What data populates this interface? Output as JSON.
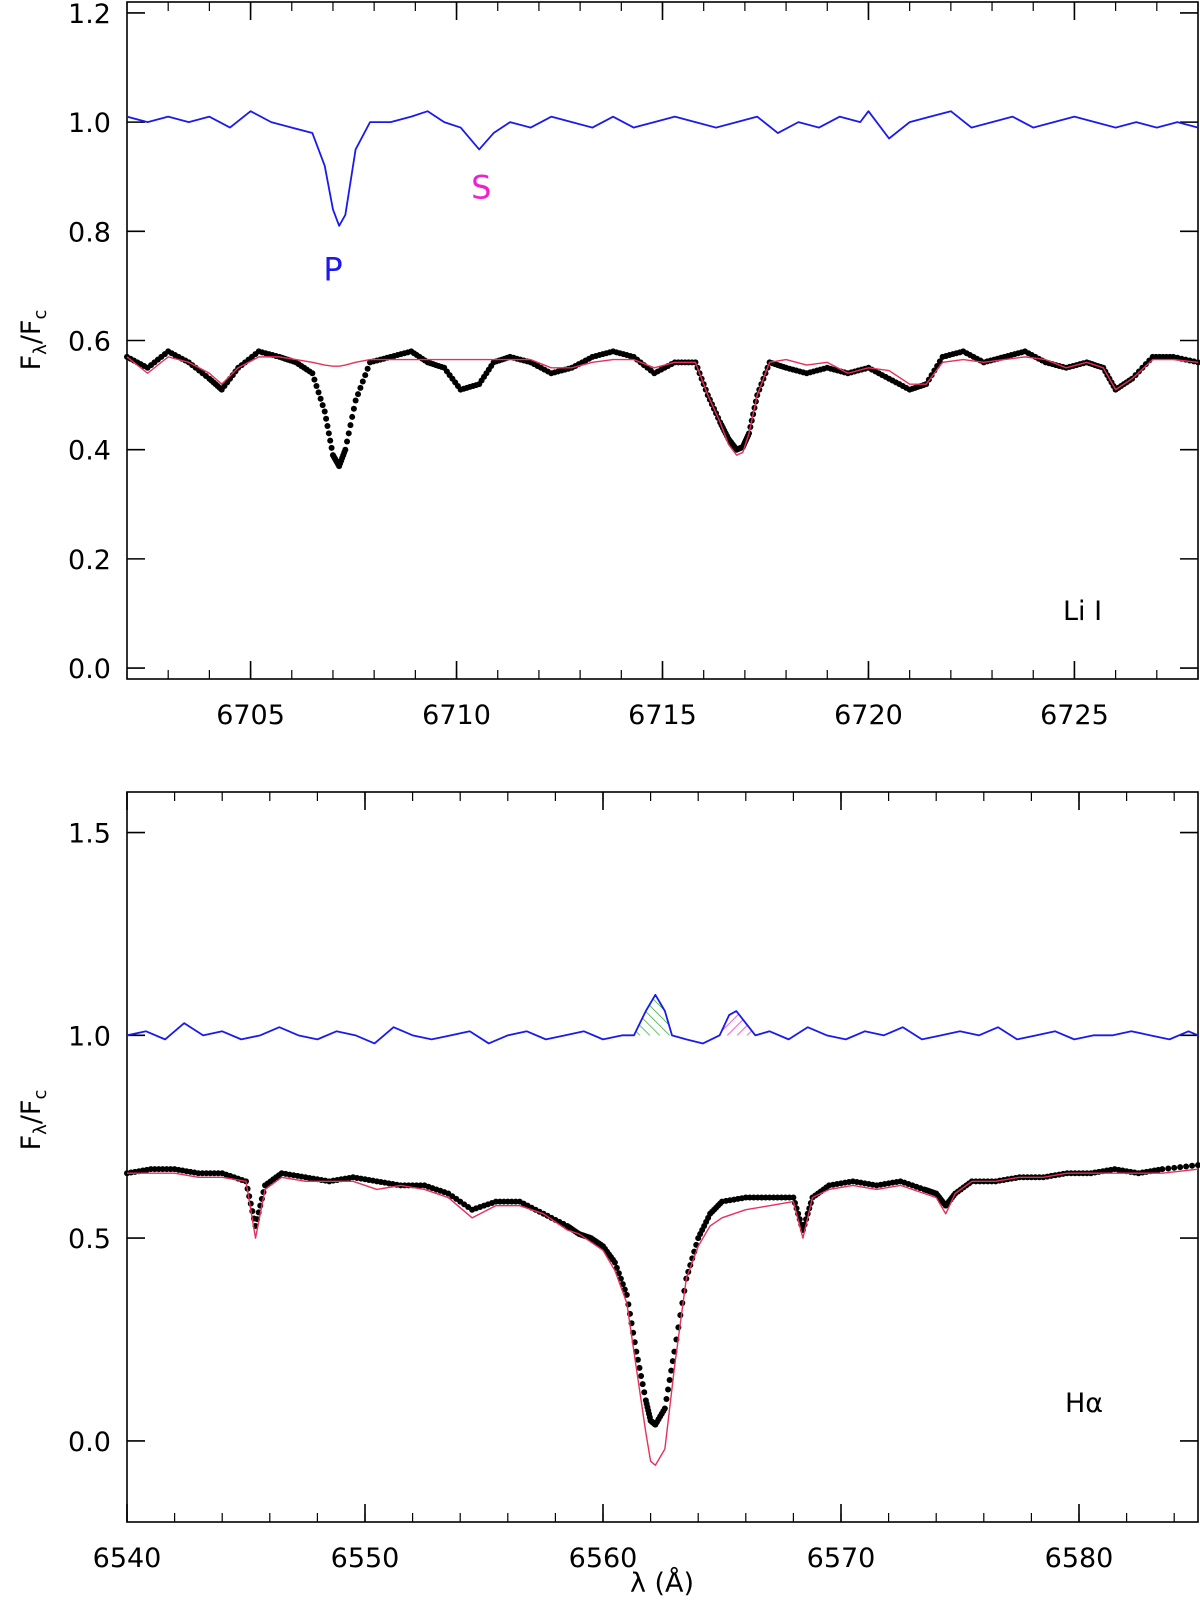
{
  "colors": {
    "observed": "#000000",
    "synthetic": "#e8305a",
    "residual": "#1a1aee",
    "secondary_label": "#ee22cc",
    "hatch_green": "#22aa22",
    "hatch_magenta": "#ee22cc"
  },
  "chart_data": [
    {
      "type": "line",
      "panel": "Li I",
      "annotation": "Li I",
      "xlabel": "",
      "ylabel_main": "F",
      "ylabel_sub1": "λ",
      "ylabel_sep": "/F",
      "ylabel_sub2": "c",
      "xlim": [
        6702,
        6728
      ],
      "ylim": [
        -0.02,
        1.22
      ],
      "xticks": [
        6705,
        6710,
        6715,
        6720,
        6725
      ],
      "yticks": [
        0.0,
        0.2,
        0.4,
        0.6,
        0.8,
        1.0,
        1.2
      ],
      "ytick_labels": [
        "0.0",
        "0.2",
        "0.4",
        "0.6",
        "0.8",
        "1.0",
        "1.2"
      ],
      "labels": [
        {
          "text": "P",
          "x": 6707.0,
          "y": 0.71,
          "color": "residual"
        },
        {
          "text": "S",
          "x": 6710.6,
          "y": 0.86,
          "color": "secondary_label"
        }
      ],
      "series": [
        {
          "style": "dots",
          "x": [
            6702.0,
            6702.5,
            6703.0,
            6703.5,
            6704.0,
            6704.3,
            6704.7,
            6705.2,
            6705.7,
            6706.1,
            6706.5,
            6706.8,
            6707.0,
            6707.15,
            6707.3,
            6707.55,
            6707.9,
            6708.4,
            6708.9,
            6709.3,
            6709.7,
            6710.1,
            6710.55,
            6710.9,
            6711.3,
            6711.8,
            6712.3,
            6712.8,
            6713.3,
            6713.8,
            6714.3,
            6714.8,
            6715.3,
            6715.8,
            6716.1,
            6716.4,
            6716.6,
            6716.8,
            6716.95,
            6717.1,
            6717.3,
            6717.6,
            6718.0,
            6718.5,
            6719.0,
            6719.5,
            6720.0,
            6720.5,
            6721.0,
            6721.4,
            6721.8,
            6722.3,
            6722.8,
            6723.3,
            6723.8,
            6724.3,
            6724.8,
            6725.3,
            6725.7,
            6726.0,
            6726.4,
            6726.9,
            6727.4,
            6728.0
          ],
          "y": [
            0.57,
            0.55,
            0.58,
            0.56,
            0.53,
            0.51,
            0.55,
            0.58,
            0.57,
            0.56,
            0.54,
            0.47,
            0.39,
            0.37,
            0.4,
            0.49,
            0.56,
            0.57,
            0.58,
            0.56,
            0.55,
            0.51,
            0.52,
            0.56,
            0.57,
            0.56,
            0.54,
            0.55,
            0.57,
            0.58,
            0.57,
            0.54,
            0.56,
            0.56,
            0.5,
            0.45,
            0.42,
            0.4,
            0.405,
            0.43,
            0.5,
            0.56,
            0.55,
            0.54,
            0.55,
            0.54,
            0.55,
            0.53,
            0.51,
            0.52,
            0.57,
            0.58,
            0.56,
            0.57,
            0.58,
            0.56,
            0.55,
            0.56,
            0.55,
            0.51,
            0.53,
            0.57,
            0.57,
            0.56
          ]
        },
        {
          "style": "line",
          "color": "synthetic",
          "x": [
            6702.0,
            6702.5,
            6703.0,
            6703.5,
            6704.0,
            6704.3,
            6704.7,
            6705.2,
            6705.7,
            6706.1,
            6706.5,
            6706.8,
            6707.0,
            6707.15,
            6707.3,
            6707.55,
            6707.9,
            6708.4,
            6708.9,
            6709.3,
            6709.7,
            6710.1,
            6710.55,
            6710.9,
            6711.3,
            6711.8,
            6712.3,
            6712.8,
            6713.3,
            6713.8,
            6714.3,
            6714.8,
            6715.3,
            6715.8,
            6716.1,
            6716.4,
            6716.6,
            6716.8,
            6716.95,
            6717.1,
            6717.3,
            6717.6,
            6718.0,
            6718.5,
            6719.0,
            6719.5,
            6720.0,
            6720.5,
            6721.0,
            6721.4,
            6721.8,
            6722.3,
            6722.8,
            6723.3,
            6723.8,
            6724.3,
            6724.8,
            6725.3,
            6725.7,
            6726.0,
            6726.4,
            6726.9,
            6727.4,
            6728.0
          ],
          "y": [
            0.57,
            0.54,
            0.57,
            0.56,
            0.54,
            0.52,
            0.55,
            0.57,
            0.57,
            0.565,
            0.56,
            0.555,
            0.553,
            0.553,
            0.555,
            0.56,
            0.565,
            0.565,
            0.565,
            0.565,
            0.565,
            0.565,
            0.565,
            0.565,
            0.565,
            0.565,
            0.55,
            0.55,
            0.56,
            0.565,
            0.565,
            0.55,
            0.56,
            0.56,
            0.5,
            0.45,
            0.41,
            0.39,
            0.395,
            0.43,
            0.5,
            0.56,
            0.565,
            0.555,
            0.56,
            0.54,
            0.55,
            0.545,
            0.52,
            0.52,
            0.56,
            0.565,
            0.56,
            0.565,
            0.57,
            0.565,
            0.55,
            0.56,
            0.55,
            0.51,
            0.53,
            0.565,
            0.565,
            0.56
          ]
        },
        {
          "style": "line",
          "color": "residual",
          "x": [
            6702.0,
            6702.5,
            6703.0,
            6703.5,
            6704.0,
            6704.5,
            6705.0,
            6705.5,
            6706.0,
            6706.5,
            6706.8,
            6707.0,
            6707.15,
            6707.3,
            6707.55,
            6707.9,
            6708.4,
            6708.9,
            6709.3,
            6709.7,
            6710.1,
            6710.55,
            6710.9,
            6711.3,
            6711.8,
            6712.3,
            6712.8,
            6713.3,
            6713.8,
            6714.3,
            6714.8,
            6715.3,
            6715.8,
            6716.3,
            6716.8,
            6717.3,
            6717.8,
            6718.3,
            6718.8,
            6719.3,
            6719.8,
            6720.0,
            6720.5,
            6721.0,
            6721.5,
            6722.0,
            6722.5,
            6723.0,
            6723.5,
            6724.0,
            6724.5,
            6725.0,
            6725.5,
            6726.0,
            6726.5,
            6727.0,
            6727.5,
            6728.0
          ],
          "y": [
            1.01,
            1.0,
            1.01,
            1.0,
            1.01,
            0.99,
            1.02,
            1.0,
            0.99,
            0.98,
            0.92,
            0.84,
            0.81,
            0.83,
            0.95,
            1.0,
            1.0,
            1.01,
            1.02,
            1.0,
            0.99,
            0.95,
            0.98,
            1.0,
            0.99,
            1.01,
            1.0,
            0.99,
            1.01,
            0.99,
            1.0,
            1.01,
            1.0,
            0.99,
            1.0,
            1.01,
            0.98,
            1.0,
            0.99,
            1.01,
            1.0,
            1.02,
            0.97,
            1.0,
            1.01,
            1.02,
            0.99,
            1.0,
            1.01,
            0.99,
            1.0,
            1.01,
            1.0,
            0.99,
            1.0,
            0.99,
            1.0,
            0.99
          ]
        }
      ]
    },
    {
      "type": "line",
      "panel": "H-alpha",
      "annotation": "Hα",
      "xlabel": "λ (Å)",
      "ylabel_main": "F",
      "ylabel_sub1": "λ",
      "ylabel_sep": "/F",
      "ylabel_sub2": "c",
      "xlim": [
        6540,
        6585
      ],
      "ylim": [
        -0.2,
        1.6
      ],
      "xticks": [
        6540,
        6550,
        6560,
        6570,
        6580
      ],
      "yticks": [
        0.0,
        0.5,
        1.0,
        1.5
      ],
      "ytick_labels": [
        "0.0",
        "0.5",
        "1.0",
        "1.5"
      ],
      "hatches": [
        {
          "x": [
            6561.3,
            6561.8,
            6562.2,
            6562.6,
            6562.9
          ],
          "y": [
            1.0,
            1.06,
            1.1,
            1.06,
            1.0
          ],
          "color": "hatch_green",
          "dir": "fwd"
        },
        {
          "x": [
            6564.9,
            6565.3,
            6565.6,
            6566.0,
            6566.4
          ],
          "y": [
            1.0,
            1.05,
            1.06,
            1.03,
            1.0
          ],
          "color": "hatch_magenta",
          "dir": "back"
        }
      ],
      "series": [
        {
          "style": "dots",
          "x": [
            6540.0,
            6541.0,
            6542.0,
            6543.0,
            6544.0,
            6545.0,
            6545.4,
            6545.8,
            6546.5,
            6547.5,
            6548.5,
            6549.5,
            6550.5,
            6551.5,
            6552.5,
            6553.5,
            6554.5,
            6555.5,
            6556.5,
            6557.5,
            6558.5,
            6559.0,
            6559.5,
            6560.0,
            6560.5,
            6561.0,
            6561.4,
            6561.8,
            6562.0,
            6562.2,
            6562.6,
            6563.0,
            6563.5,
            6564.0,
            6564.5,
            6565.0,
            6566.0,
            6567.0,
            6568.0,
            6568.4,
            6568.8,
            6569.5,
            6570.5,
            6571.5,
            6572.5,
            6573.5,
            6574.0,
            6574.4,
            6574.8,
            6575.5,
            6576.5,
            6577.5,
            6578.5,
            6579.5,
            6580.5,
            6581.5,
            6582.5,
            6583.5,
            6585.0
          ],
          "y": [
            0.66,
            0.67,
            0.67,
            0.66,
            0.66,
            0.64,
            0.53,
            0.63,
            0.66,
            0.65,
            0.64,
            0.65,
            0.64,
            0.63,
            0.63,
            0.61,
            0.57,
            0.59,
            0.59,
            0.56,
            0.53,
            0.51,
            0.5,
            0.48,
            0.44,
            0.36,
            0.22,
            0.1,
            0.05,
            0.04,
            0.08,
            0.22,
            0.4,
            0.5,
            0.56,
            0.59,
            0.6,
            0.6,
            0.6,
            0.52,
            0.6,
            0.63,
            0.64,
            0.63,
            0.64,
            0.62,
            0.61,
            0.58,
            0.61,
            0.64,
            0.64,
            0.65,
            0.65,
            0.66,
            0.66,
            0.67,
            0.66,
            0.67,
            0.68
          ]
        },
        {
          "style": "line",
          "color": "synthetic",
          "x": [
            6540.0,
            6541.0,
            6542.0,
            6543.0,
            6544.0,
            6545.0,
            6545.4,
            6545.8,
            6546.5,
            6547.5,
            6548.5,
            6549.5,
            6550.5,
            6551.5,
            6552.5,
            6553.5,
            6554.5,
            6555.5,
            6556.5,
            6557.5,
            6558.5,
            6559.0,
            6559.5,
            6560.0,
            6560.5,
            6561.0,
            6561.4,
            6561.8,
            6562.0,
            6562.2,
            6562.6,
            6563.0,
            6563.5,
            6564.0,
            6564.5,
            6565.0,
            6566.0,
            6567.0,
            6568.0,
            6568.4,
            6568.8,
            6569.5,
            6570.5,
            6571.5,
            6572.5,
            6573.5,
            6574.0,
            6574.4,
            6574.8,
            6575.5,
            6576.5,
            6577.5,
            6578.5,
            6579.5,
            6580.5,
            6581.5,
            6582.5,
            6583.5,
            6585.0
          ],
          "y": [
            0.66,
            0.66,
            0.66,
            0.65,
            0.65,
            0.64,
            0.5,
            0.62,
            0.65,
            0.64,
            0.64,
            0.64,
            0.62,
            0.63,
            0.62,
            0.6,
            0.55,
            0.58,
            0.58,
            0.56,
            0.52,
            0.51,
            0.49,
            0.47,
            0.42,
            0.34,
            0.18,
            0.02,
            -0.05,
            -0.06,
            -0.02,
            0.18,
            0.4,
            0.48,
            0.53,
            0.55,
            0.57,
            0.58,
            0.59,
            0.5,
            0.6,
            0.62,
            0.63,
            0.62,
            0.63,
            0.61,
            0.6,
            0.56,
            0.61,
            0.64,
            0.64,
            0.65,
            0.65,
            0.66,
            0.66,
            0.66,
            0.66,
            0.66,
            0.67
          ]
        },
        {
          "style": "line",
          "color": "residual",
          "x": [
            6540.0,
            6540.8,
            6541.6,
            6542.4,
            6543.2,
            6544.0,
            6544.8,
            6545.6,
            6546.4,
            6547.2,
            6548.0,
            6548.8,
            6549.6,
            6550.4,
            6551.2,
            6552.0,
            6552.8,
            6553.6,
            6554.4,
            6555.2,
            6556.0,
            6556.8,
            6557.6,
            6558.4,
            6559.2,
            6560.0,
            6560.8,
            6561.3,
            6561.8,
            6562.2,
            6562.6,
            6562.9,
            6563.5,
            6564.2,
            6564.9,
            6565.3,
            6565.6,
            6566.0,
            6566.4,
            6567.0,
            6567.8,
            6568.6,
            6569.4,
            6570.2,
            6571.0,
            6571.8,
            6572.6,
            6573.4,
            6574.2,
            6575.0,
            6575.8,
            6576.6,
            6577.4,
            6578.2,
            6579.0,
            6579.8,
            6580.6,
            6581.4,
            6582.2,
            6583.0,
            6583.8,
            6584.6,
            6585.0
          ],
          "y": [
            1.0,
            1.01,
            0.99,
            1.03,
            1.0,
            1.01,
            0.99,
            1.0,
            1.02,
            1.0,
            0.99,
            1.01,
            1.0,
            0.98,
            1.02,
            1.0,
            0.99,
            1.0,
            1.01,
            0.98,
            1.0,
            1.01,
            0.99,
            1.0,
            1.01,
            0.99,
            1.0,
            1.0,
            1.06,
            1.1,
            1.06,
            1.0,
            0.99,
            0.98,
            1.0,
            1.05,
            1.06,
            1.03,
            1.0,
            1.01,
            0.99,
            1.02,
            1.0,
            0.99,
            1.01,
            1.0,
            1.02,
            0.99,
            1.0,
            1.01,
            1.0,
            1.02,
            0.99,
            1.0,
            1.01,
            0.99,
            1.0,
            1.0,
            1.01,
            1.0,
            0.99,
            1.01,
            1.0
          ]
        }
      ]
    }
  ]
}
